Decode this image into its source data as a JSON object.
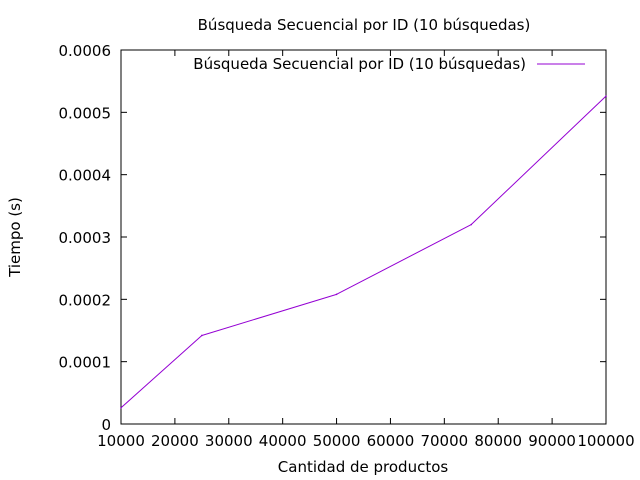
{
  "chart_data": {
    "type": "line",
    "title": "Búsqueda Secuencial por ID (10 búsquedas)",
    "xlabel": "Cantidad de productos",
    "ylabel": "Tiempo (s)",
    "xlim": [
      10000,
      100000
    ],
    "ylim": [
      0,
      0.0006
    ],
    "xticks": [
      10000,
      20000,
      30000,
      40000,
      50000,
      60000,
      70000,
      80000,
      90000,
      100000
    ],
    "xtick_labels": [
      "10000",
      "20000",
      "30000",
      "40000",
      "50000",
      "60000",
      "70000",
      "80000",
      "90000",
      "100000"
    ],
    "yticks": [
      0,
      0.0001,
      0.0002,
      0.0003,
      0.0004,
      0.0005,
      0.0006
    ],
    "ytick_labels": [
      "0",
      "0.0001",
      "0.0002",
      "0.0003",
      "0.0004",
      "0.0005",
      "0.0006"
    ],
    "grid": false,
    "legend_position": "top-right",
    "series": [
      {
        "name": "Búsqueda Secuencial por ID (10 búsquedas)",
        "color": "#9400d3",
        "x": [
          10000,
          25000,
          50000,
          75000,
          100000
        ],
        "y": [
          2.6e-05,
          0.000142,
          0.000208,
          0.00032,
          0.000526
        ]
      }
    ]
  }
}
